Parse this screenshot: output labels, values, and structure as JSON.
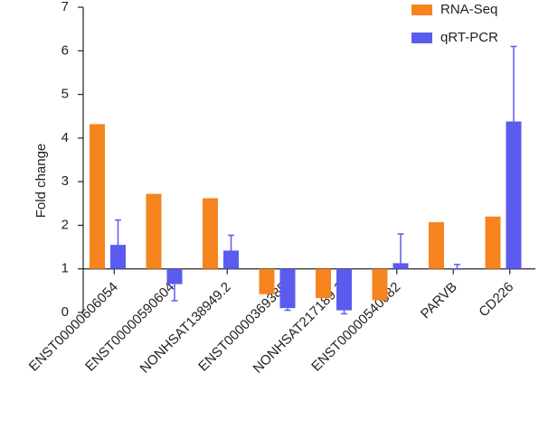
{
  "chart_data": {
    "type": "bar",
    "y_axis_label": "Fold change",
    "categories": [
      "ENST00000606054",
      "ENST00000590604",
      "NONHSAT138949.2",
      "ENST00000369385",
      "NONHSAT217189.1",
      "ENST00000540082",
      "PARVB",
      "CD226"
    ],
    "series": [
      {
        "name": "RNA-Seq",
        "color": "#f5841f",
        "values": [
          4.32,
          2.72,
          2.62,
          0.42,
          0.33,
          0.28,
          2.07,
          2.2
        ]
      },
      {
        "name": "qRT-PCR",
        "color": "#5b5bf0",
        "values": [
          1.55,
          0.65,
          1.42,
          0.1,
          0.05,
          1.13,
          1.0,
          4.38
        ],
        "errors": [
          0.57,
          0.38,
          0.35,
          0.05,
          0.08,
          0.67,
          0.1,
          1.72
        ]
      }
    ],
    "baseline": 1,
    "ylim": [
      0,
      7
    ],
    "yticks": [
      0,
      1,
      2,
      3,
      4,
      5,
      6,
      7
    ],
    "legend": "top-right"
  }
}
